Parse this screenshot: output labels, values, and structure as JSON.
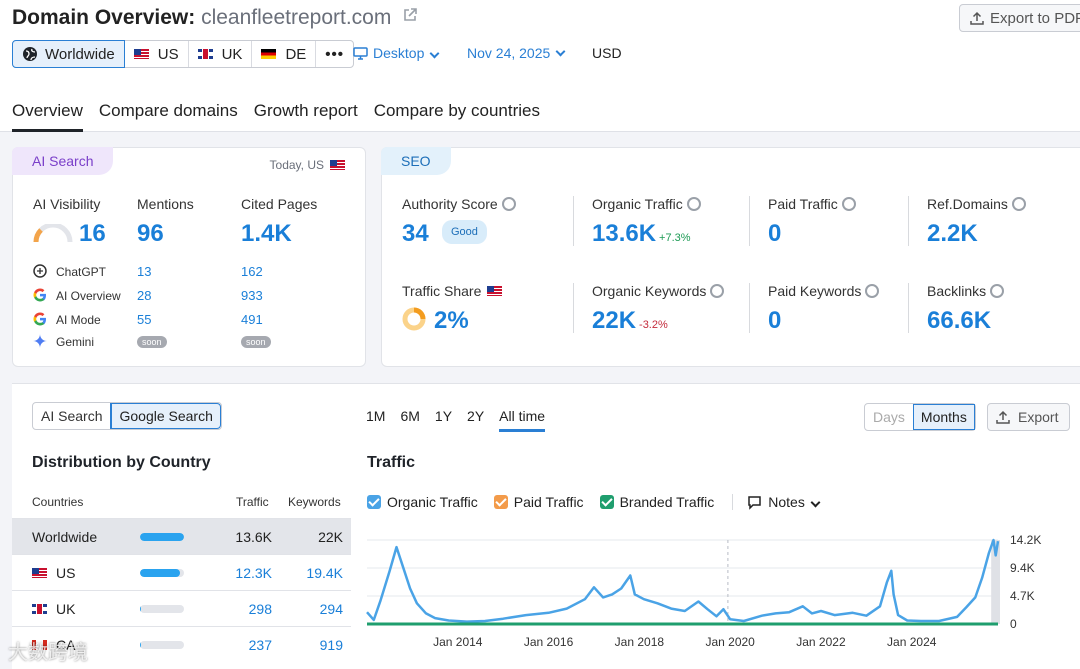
{
  "header": {
    "title": "Domain Overview:",
    "domain": "cleanfleetreport.com",
    "export_pdf": "Export to PDF",
    "regions": [
      "Worldwide",
      "US",
      "UK",
      "DE"
    ],
    "more": "•••",
    "device": "Desktop",
    "date": "Nov 24, 2025",
    "currency": "USD"
  },
  "tabs": [
    "Overview",
    "Compare domains",
    "Growth report",
    "Compare by countries"
  ],
  "ai_card": {
    "pill": "AI Search",
    "today": "Today, US",
    "ai_visibility_label": "AI Visibility",
    "ai_visibility": "16",
    "mentions_label": "Mentions",
    "mentions": "96",
    "cited_label": "Cited Pages",
    "cited": "1.4K",
    "sources": [
      {
        "name": "ChatGPT",
        "mentions": "13",
        "cited": "162",
        "icon": "chatgpt-icon"
      },
      {
        "name": "AI Overview",
        "mentions": "28",
        "cited": "933",
        "icon": "google-icon"
      },
      {
        "name": "AI Mode",
        "mentions": "55",
        "cited": "491",
        "icon": "google-icon"
      },
      {
        "name": "Gemini",
        "mentions": "soon",
        "cited": "soon",
        "icon": "gemini-icon"
      }
    ]
  },
  "seo_card": {
    "pill": "SEO",
    "authority_label": "Authority Score",
    "authority": "34",
    "authority_badge": "Good",
    "organic_label": "Organic Traffic",
    "organic": "13.6K",
    "organic_change": "+7.3%",
    "paid_label": "Paid Traffic",
    "paid": "0",
    "ref_label": "Ref.Domains",
    "ref": "2.2K",
    "share_label": "Traffic Share",
    "share": "2%",
    "keywords_label": "Organic Keywords",
    "keywords": "22K",
    "keywords_change": "-3.2%",
    "paid_kw_label": "Paid Keywords",
    "paid_kw": "0",
    "backlinks_label": "Backlinks",
    "backlinks": "66.6K"
  },
  "distribution": {
    "toggle": [
      "AI Search",
      "Google Search"
    ],
    "title": "Distribution by Country",
    "col_countries": "Countries",
    "col_traffic": "Traffic",
    "col_keywords": "Keywords",
    "rows": [
      {
        "country": "Worldwide",
        "traffic": "13.6K",
        "keywords": "22K",
        "share": 100
      },
      {
        "country": "US",
        "traffic": "12.3K",
        "keywords": "19.4K",
        "share": 91
      },
      {
        "country": "UK",
        "traffic": "298",
        "keywords": "294",
        "share": 2
      },
      {
        "country": "CA",
        "traffic": "237",
        "keywords": "919",
        "share": 2
      }
    ]
  },
  "traffic_panel": {
    "ranges": [
      "1M",
      "6M",
      "1Y",
      "2Y",
      "All time"
    ],
    "title": "Traffic",
    "view": [
      "Days",
      "Months"
    ],
    "export": "Export",
    "legend": [
      "Organic Traffic",
      "Paid Traffic",
      "Branded Traffic"
    ],
    "notes": "Notes"
  },
  "chart_data": {
    "type": "line",
    "title": "Traffic",
    "x_ticks": [
      "Jan 2014",
      "Jan 2016",
      "Jan 2018",
      "Jan 2020",
      "Jan 2022",
      "Jan 2024"
    ],
    "y_ticks": [
      "14.2K",
      "9.4K",
      "4.7K",
      "0"
    ],
    "ylim": [
      0,
      14200
    ],
    "x_start": 2012.0,
    "x_end": 2025.9,
    "series": [
      {
        "name": "Organic Traffic",
        "color": "#4aa3e6",
        "points": [
          [
            2012.0,
            2000
          ],
          [
            2012.15,
            700
          ],
          [
            2012.3,
            4000
          ],
          [
            2012.5,
            9000
          ],
          [
            2012.65,
            13000
          ],
          [
            2012.8,
            9500
          ],
          [
            2012.95,
            6000
          ],
          [
            2013.1,
            3500
          ],
          [
            2013.3,
            1800
          ],
          [
            2013.5,
            1000
          ],
          [
            2013.8,
            600
          ],
          [
            2014.2,
            400
          ],
          [
            2014.6,
            500
          ],
          [
            2015.0,
            900
          ],
          [
            2015.5,
            1500
          ],
          [
            2016.0,
            1900
          ],
          [
            2016.4,
            2600
          ],
          [
            2016.8,
            4200
          ],
          [
            2017.0,
            6200
          ],
          [
            2017.2,
            4500
          ],
          [
            2017.4,
            5000
          ],
          [
            2017.6,
            6000
          ],
          [
            2017.8,
            8200
          ],
          [
            2017.9,
            5000
          ],
          [
            2018.1,
            4200
          ],
          [
            2018.4,
            3500
          ],
          [
            2018.7,
            2600
          ],
          [
            2019.0,
            2200
          ],
          [
            2019.3,
            3800
          ],
          [
            2019.5,
            2500
          ],
          [
            2019.7,
            1300
          ],
          [
            2019.85,
            2500
          ],
          [
            2020.0,
            800
          ],
          [
            2020.3,
            500
          ],
          [
            2020.7,
            1400
          ],
          [
            2021.0,
            1800
          ],
          [
            2021.3,
            2000
          ],
          [
            2021.6,
            3000
          ],
          [
            2021.8,
            1800
          ],
          [
            2022.0,
            2200
          ],
          [
            2022.3,
            1500
          ],
          [
            2022.7,
            1900
          ],
          [
            2023.0,
            1400
          ],
          [
            2023.3,
            3000
          ],
          [
            2023.45,
            7000
          ],
          [
            2023.55,
            9000
          ],
          [
            2023.6,
            5000
          ],
          [
            2023.7,
            1500
          ],
          [
            2023.9,
            600
          ],
          [
            2024.2,
            500
          ],
          [
            2024.6,
            500
          ],
          [
            2025.0,
            1200
          ],
          [
            2025.2,
            2800
          ],
          [
            2025.4,
            4500
          ],
          [
            2025.55,
            7800
          ],
          [
            2025.7,
            12000
          ],
          [
            2025.8,
            14200
          ],
          [
            2025.85,
            11600
          ],
          [
            2025.9,
            14000
          ]
        ]
      },
      {
        "name": "Branded Traffic",
        "color": "#1f9e6e",
        "points": [
          [
            2012.0,
            0
          ],
          [
            2025.9,
            0
          ]
        ]
      }
    ]
  },
  "watermark": "大数跨境"
}
